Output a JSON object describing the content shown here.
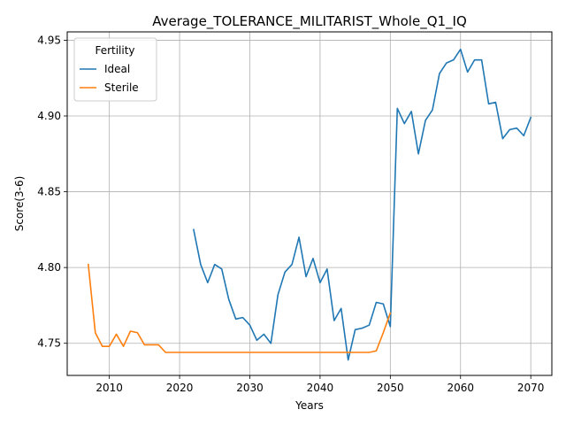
{
  "chart_data": {
    "type": "line",
    "title": "Average_TOLERANCE_MILITARIST_Whole_Q1_IQ",
    "xlabel": "Years",
    "ylabel": "Score(3-6)",
    "xlim": [
      2004,
      2073
    ],
    "ylim": [
      4.7288,
      4.9555
    ],
    "x_ticks": [
      2010,
      2020,
      2030,
      2040,
      2050,
      2060,
      2070
    ],
    "x_tick_labels": [
      "2010",
      "2020",
      "2030",
      "2040",
      "2050",
      "2060",
      "2070"
    ],
    "y_ticks": [
      4.75,
      4.8,
      4.85,
      4.9,
      4.95
    ],
    "y_tick_labels": [
      "4.75",
      "4.80",
      "4.85",
      "4.90",
      "4.95"
    ],
    "grid": true,
    "legend": {
      "title": "Fertility",
      "placement": "top-left"
    },
    "series": [
      {
        "name": "Ideal",
        "color": "#1f77b4",
        "x": [
          2022,
          2023,
          2024,
          2025,
          2026,
          2027,
          2028,
          2029,
          2030,
          2031,
          2032,
          2033,
          2034,
          2035,
          2036,
          2037,
          2038,
          2039,
          2040,
          2041,
          2042,
          2043,
          2044,
          2045,
          2046,
          2047,
          2048,
          2049,
          2050,
          2051,
          2052,
          2053,
          2054,
          2055,
          2056,
          2057,
          2058,
          2059,
          2060,
          2061,
          2062,
          2063,
          2064,
          2065,
          2066,
          2067,
          2068,
          2069,
          2070
        ],
        "values": [
          4.825,
          4.802,
          4.79,
          4.802,
          4.799,
          4.779,
          4.766,
          4.767,
          4.762,
          4.752,
          4.756,
          4.75,
          4.782,
          4.797,
          4.802,
          4.82,
          4.794,
          4.806,
          4.79,
          4.799,
          4.765,
          4.773,
          4.739,
          4.759,
          4.76,
          4.762,
          4.777,
          4.776,
          4.761,
          4.905,
          4.895,
          4.903,
          4.875,
          4.897,
          4.904,
          4.928,
          4.935,
          4.937,
          4.944,
          4.929,
          4.937,
          4.937,
          4.908,
          4.909,
          4.885,
          4.891,
          4.892,
          4.887,
          4.899
        ]
      },
      {
        "name": "Sterile",
        "color": "#ff7f0e",
        "x": [
          2007,
          2008,
          2009,
          2010,
          2011,
          2012,
          2013,
          2014,
          2015,
          2016,
          2017,
          2018,
          2019,
          2020,
          2021,
          2022,
          2023,
          2024,
          2025,
          2026,
          2027,
          2028,
          2029,
          2030,
          2031,
          2032,
          2033,
          2034,
          2035,
          2036,
          2037,
          2038,
          2039,
          2040,
          2041,
          2042,
          2043,
          2044,
          2045,
          2046,
          2047,
          2048,
          2049,
          2050
        ],
        "values": [
          4.802,
          4.757,
          4.748,
          4.748,
          4.756,
          4.748,
          4.758,
          4.757,
          4.749,
          4.749,
          4.749,
          4.744,
          4.744,
          4.744,
          4.744,
          4.744,
          4.744,
          4.744,
          4.744,
          4.744,
          4.744,
          4.744,
          4.744,
          4.744,
          4.744,
          4.744,
          4.744,
          4.744,
          4.744,
          4.744,
          4.744,
          4.744,
          4.744,
          4.744,
          4.744,
          4.744,
          4.744,
          4.744,
          4.744,
          4.744,
          4.744,
          4.745,
          4.757,
          4.77
        ]
      }
    ]
  }
}
